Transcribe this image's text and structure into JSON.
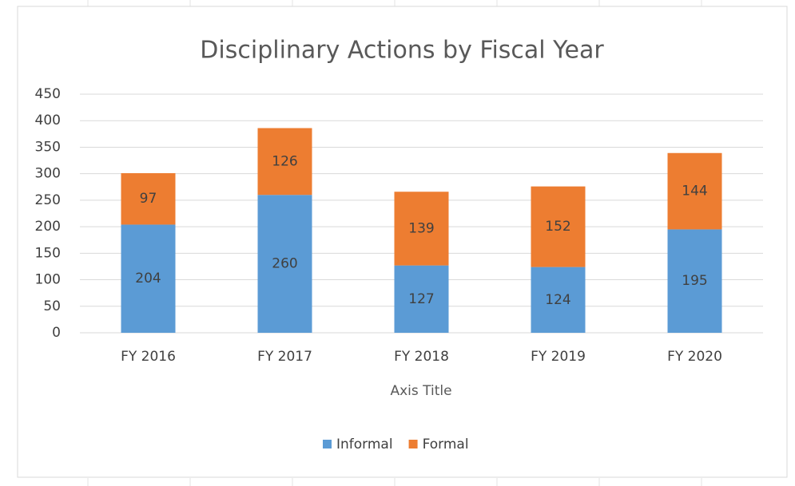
{
  "chart_data": {
    "type": "stacked_bar",
    "title": "Disciplinary Actions by Fiscal Year",
    "x_label": "Axis Title",
    "categories": [
      "FY 2016",
      "FY 2017",
      "FY 2018",
      "FY 2019",
      "FY 2020"
    ],
    "series": [
      {
        "name": "Informal",
        "color": "#5b9bd5",
        "values": [
          204,
          260,
          127,
          124,
          195
        ]
      },
      {
        "name": "Formal",
        "color": "#ed7d31",
        "values": [
          97,
          126,
          139,
          152,
          144
        ]
      }
    ],
    "ylim": [
      0,
      450
    ],
    "yticks": [
      0,
      50,
      100,
      150,
      200,
      250,
      300,
      350,
      400,
      450
    ],
    "grid": true,
    "legend": "bottom"
  }
}
